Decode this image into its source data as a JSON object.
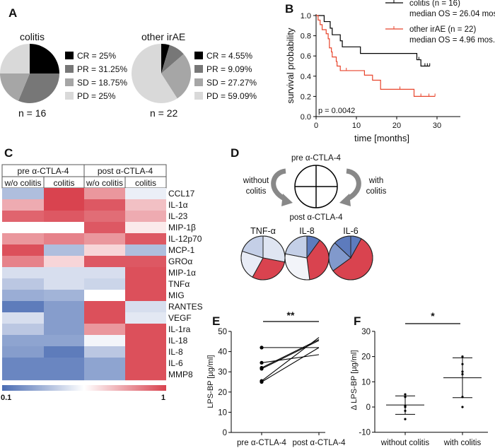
{
  "panels": {
    "a": "A",
    "b": "B",
    "c": "C",
    "d": "D",
    "e": "E",
    "f": "F"
  },
  "chart_data": [
    {
      "id": "A1",
      "type": "pie",
      "title": "colitis",
      "footer": "n = 16",
      "categories": [
        "CR",
        "PR",
        "SD",
        "PD"
      ],
      "values": [
        25,
        31.25,
        18.75,
        25
      ],
      "legend": [
        "CR = 25%",
        "PR = 31.25%",
        "SD = 18.75%",
        "PD = 25%"
      ],
      "colors": [
        "#000000",
        "#777777",
        "#a6a6a6",
        "#d9d9d9"
      ]
    },
    {
      "id": "A2",
      "type": "pie",
      "title": "other irAE",
      "footer": "n = 22",
      "categories": [
        "CR",
        "PR",
        "SD",
        "PD"
      ],
      "values": [
        4.55,
        9.09,
        27.27,
        59.09
      ],
      "legend": [
        "CR = 4.55%",
        "PR = 9.09%",
        "SD = 27.27%",
        "PD = 59.09%"
      ],
      "colors": [
        "#000000",
        "#777777",
        "#a6a6a6",
        "#d9d9d9"
      ]
    },
    {
      "id": "B",
      "type": "line",
      "xlabel": "time [months]",
      "ylabel": "survival probability",
      "xlim": [
        0,
        30
      ],
      "ylim": [
        0,
        1
      ],
      "xticks": [
        "0",
        "10",
        "20",
        "30"
      ],
      "yticks": [
        "0.0",
        "0.2",
        "0.4",
        "0.6",
        "0.8",
        "1.0"
      ],
      "annotation": "p = 0.0042",
      "legend_position": "top-right",
      "series": [
        {
          "name": "colitis (n = 16)",
          "note": "median OS = 26.04 mos.",
          "color": "#000000",
          "steps": [
            [
              0,
              1.0
            ],
            [
              2,
              0.94
            ],
            [
              3.5,
              0.875
            ],
            [
              4,
              0.81
            ],
            [
              6,
              0.75
            ],
            [
              6.5,
              0.69
            ],
            [
              11,
              0.625
            ],
            [
              25,
              0.5625
            ],
            [
              26,
              0.5
            ],
            [
              28.2,
              0.5
            ]
          ],
          "censored": [
            [
              25.5,
              0.5625
            ],
            [
              27,
              0.5
            ],
            [
              27.6,
              0.5
            ],
            [
              28.2,
              0.5
            ]
          ]
        },
        {
          "name": "other irAE (n = 22)",
          "note": "median OS = 4.96 mos.",
          "color": "#e8452c",
          "steps": [
            [
              0,
              1.0
            ],
            [
              0.5,
              0.955
            ],
            [
              1,
              0.91
            ],
            [
              1.5,
              0.86
            ],
            [
              2.5,
              0.82
            ],
            [
              3,
              0.77
            ],
            [
              3.3,
              0.68
            ],
            [
              3.8,
              0.64
            ],
            [
              4,
              0.59
            ],
            [
              5,
              0.545
            ],
            [
              5.2,
              0.5
            ],
            [
              6,
              0.455
            ],
            [
              12,
              0.41
            ],
            [
              14,
              0.36
            ],
            [
              16,
              0.27
            ],
            [
              24.3,
              0.2
            ],
            [
              29.5,
              0.2
            ]
          ],
          "censored": [
            [
              7.5,
              0.455
            ],
            [
              20.8,
              0.27
            ],
            [
              26,
              0.2
            ],
            [
              28,
              0.2
            ],
            [
              29.5,
              0.2
            ]
          ]
        }
      ]
    },
    {
      "id": "C",
      "type": "heatmap",
      "group_headers": [
        "pre α-CTLA-4",
        "post α-CTLA-4"
      ],
      "columns": [
        "w/o colitis",
        "colitis",
        "w/o colitis",
        "colitis"
      ],
      "rows": [
        "CCL17",
        "IL-1α",
        "IL-23",
        "MIP-1β",
        "IL-12p70",
        "MCP-1",
        "GROα",
        "MIP-1α",
        "TNFα",
        "MIG",
        "RANTES",
        "VEGF",
        "IL-1ra",
        "IL-18",
        "IL-8",
        "IL-6",
        "MMP8"
      ],
      "values": [
        [
          0.35,
          1.0,
          0.8,
          0.5
        ],
        [
          0.75,
          1.0,
          0.95,
          0.7
        ],
        [
          0.92,
          0.95,
          0.9,
          0.75
        ],
        [
          0.55,
          0.55,
          0.95,
          0.6
        ],
        [
          0.8,
          0.85,
          0.8,
          0.95
        ],
        [
          0.97,
          0.35,
          0.65,
          0.35
        ],
        [
          0.85,
          0.65,
          0.95,
          0.95
        ],
        [
          0.45,
          0.45,
          0.45,
          0.97
        ],
        [
          0.38,
          0.45,
          0.42,
          0.97
        ],
        [
          0.3,
          0.32,
          0.55,
          0.97
        ],
        [
          0.15,
          0.25,
          0.97,
          0.45
        ],
        [
          0.45,
          0.25,
          0.97,
          0.48
        ],
        [
          0.38,
          0.25,
          0.8,
          0.97
        ],
        [
          0.27,
          0.27,
          0.52,
          0.97
        ],
        [
          0.25,
          0.15,
          0.38,
          0.97
        ],
        [
          0.18,
          0.18,
          0.27,
          0.97
        ],
        [
          0.18,
          0.18,
          0.27,
          0.97
        ]
      ],
      "scale_min_label": "0.1",
      "scale_max_label": "1",
      "scale": [
        0.1,
        1
      ],
      "low_color": "#4a6cb3",
      "mid_color": "#ffffff",
      "high_color": "#d9434f"
    },
    {
      "id": "D",
      "type": "pie",
      "schema": {
        "top": "pre α-CTLA-4",
        "bottom": "post α-CTLA-4",
        "left": [
          "without",
          "colitis"
        ],
        "right": [
          "with",
          "colitis"
        ]
      },
      "pies": [
        {
          "title": "TNF-α",
          "values": [
            0.28,
            0.3,
            0.22,
            0.2
          ],
          "colors": [
            "#dfe5f2",
            "#d9434f",
            "#e8ecf6",
            "#c4cfe7"
          ]
        },
        {
          "title": "IL-8",
          "values": [
            0.1,
            0.38,
            0.3,
            0.22
          ],
          "colors": [
            "#5d7bbd",
            "#d9434f",
            "#f2f4f9",
            "#c4cfe7"
          ]
        },
        {
          "title": "IL-6",
          "values": [
            0.08,
            0.57,
            0.22,
            0.13
          ],
          "colors": [
            "#5d7bbd",
            "#d9434f",
            "#8199cc",
            "#5d7bbd"
          ]
        }
      ]
    },
    {
      "id": "E",
      "type": "scatter",
      "ylabel": "LPS-BP [µg/ml]",
      "categories": [
        "pre α-CTLA-4",
        "post α-CTLA-4"
      ],
      "ylim": [
        0,
        50
      ],
      "yticks": [
        "0",
        "10",
        "20",
        "30",
        "40",
        "50"
      ],
      "significance": "**",
      "pairs": [
        [
          42,
          42
        ],
        [
          34.5,
          38.5
        ],
        [
          32,
          46
        ],
        [
          31.5,
          45.5
        ],
        [
          25.5,
          47
        ],
        [
          25,
          42
        ]
      ]
    },
    {
      "id": "F",
      "type": "scatter",
      "ylabel": "Δ LPS-BP [µg/ml]",
      "categories": [
        "without colitis",
        "with colitis"
      ],
      "ylim": [
        -10,
        30
      ],
      "yticks": [
        "-10",
        "0",
        "10",
        "20",
        "30"
      ],
      "significance": "*",
      "groups": [
        {
          "points": [
            5,
            4,
            0.5,
            0,
            -1.5,
            -4.8
          ],
          "mean": 0.8,
          "sd_low": -2.9,
          "sd_high": 4.4
        },
        {
          "points": [
            20,
            17,
            14,
            13,
            4,
            0
          ],
          "mean": 11.6,
          "sd_low": 3.7,
          "sd_high": 19.5
        }
      ]
    }
  ]
}
